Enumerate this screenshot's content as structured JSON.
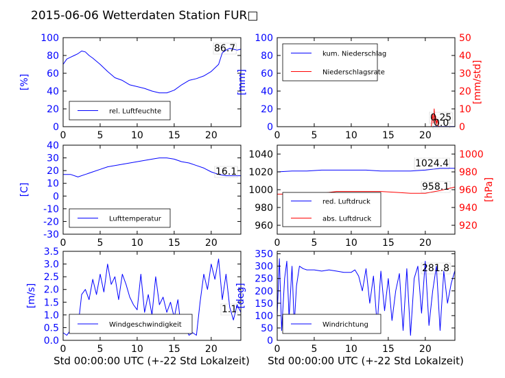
{
  "title": "2015-06-06 Wetterdaten Station FUR□",
  "xlabel": "Std 00:00:00 UTC (+-22 Std Lokalzeit)",
  "colors": {
    "primary": "#0000ff",
    "secondary": "#ff0000",
    "text": "#000000"
  },
  "chart_data": [
    {
      "id": "humidity",
      "type": "line",
      "ylabel": "[%]",
      "xlim": [
        0,
        24
      ],
      "ylim": [
        0,
        100
      ],
      "xticks": [
        0,
        5,
        10,
        15,
        20
      ],
      "yticks": [
        0,
        20,
        40,
        60,
        80,
        100
      ],
      "legend": {
        "position": "bottom-left",
        "entries": [
          "rel. Luftfeuchte"
        ]
      },
      "annotation": "86.7",
      "series": [
        {
          "name": "rel. Luftfeuchte",
          "color": "#0000ff",
          "x": [
            0,
            0.5,
            1,
            1.5,
            2,
            2.5,
            3,
            3.5,
            4,
            5,
            6,
            7,
            8,
            9,
            10,
            11,
            12,
            13,
            14,
            15,
            16,
            17,
            18,
            19,
            20,
            21,
            21.5,
            22,
            22.5,
            23,
            23.5,
            24
          ],
          "y": [
            70,
            76,
            78,
            80,
            82,
            85,
            84,
            80,
            77,
            70,
            62,
            55,
            52,
            47,
            45,
            43,
            40,
            38,
            38,
            41,
            47,
            52,
            54,
            57,
            62,
            70,
            83,
            86,
            88,
            87,
            86,
            87
          ]
        }
      ]
    },
    {
      "id": "precipitation",
      "type": "line",
      "ylabel": "[mm]",
      "y2label": "[mm/std]",
      "xlim": [
        0,
        24
      ],
      "ylim": [
        0,
        100
      ],
      "y2lim": [
        0,
        50
      ],
      "xticks": [
        0,
        5,
        10,
        15,
        20
      ],
      "yticks": [
        0,
        20,
        40,
        60,
        80,
        100
      ],
      "y2ticks": [
        0,
        10,
        20,
        30,
        40,
        50
      ],
      "legend": {
        "position": "top-left",
        "entries": [
          "kum. Niederschlag",
          "Niederschlagsrate"
        ]
      },
      "annotations": [
        "0.25",
        "0.0"
      ],
      "series": [
        {
          "name": "kum. Niederschlag",
          "color": "#0000ff",
          "axis": "left",
          "x": [
            0,
            21,
            21.2,
            24
          ],
          "y": [
            0,
            0,
            0.25,
            0.25
          ]
        },
        {
          "name": "Niederschlagsrate",
          "color": "#ff0000",
          "axis": "right",
          "x": [
            0,
            20.8,
            21,
            21.1,
            21.2,
            21.3,
            21.4,
            21.5,
            21.6,
            21.8,
            22,
            24
          ],
          "y": [
            0,
            0,
            7,
            2,
            10,
            3,
            6,
            1,
            4,
            0,
            0,
            0
          ]
        }
      ]
    },
    {
      "id": "temperature",
      "type": "line",
      "ylabel": "[C]",
      "xlim": [
        0,
        24
      ],
      "ylim": [
        -30,
        40
      ],
      "xticks": [
        0,
        5,
        10,
        15,
        20
      ],
      "yticks": [
        -30,
        -20,
        -10,
        0,
        10,
        20,
        30,
        40
      ],
      "legend": {
        "position": "bottom-left",
        "entries": [
          "Lufttemperatur"
        ]
      },
      "annotation": "16.1",
      "series": [
        {
          "name": "Lufttemperatur",
          "color": "#0000ff",
          "x": [
            0,
            1,
            2,
            3,
            4,
            5,
            6,
            7,
            8,
            9,
            10,
            11,
            12,
            13,
            14,
            15,
            16,
            17,
            18,
            19,
            20,
            21,
            22,
            23,
            24
          ],
          "y": [
            17,
            17,
            15,
            17,
            19,
            21,
            23,
            24,
            25,
            26,
            27,
            28,
            29,
            30,
            30,
            29,
            27,
            26,
            24,
            22,
            19,
            17,
            16,
            16,
            16
          ]
        }
      ]
    },
    {
      "id": "pressure",
      "type": "line",
      "ylabel": "",
      "y2label": "[hPa]",
      "xlim": [
        0,
        24
      ],
      "ylim": [
        950,
        1050
      ],
      "y2lim": [
        910,
        1010
      ],
      "xticks": [
        0,
        5,
        10,
        15,
        20
      ],
      "yticks": [
        960,
        980,
        1000,
        1020,
        1040
      ],
      "y2ticks": [
        920,
        940,
        960,
        980,
        1000
      ],
      "legend": {
        "position": "bottom-left",
        "entries": [
          "red. Luftdruck",
          "abs. Luftdruck"
        ]
      },
      "annotations": [
        "1024.4",
        "958.1"
      ],
      "series": [
        {
          "name": "red. Luftdruck",
          "color": "#0000ff",
          "axis": "left",
          "x": [
            0,
            2,
            4,
            6,
            8,
            10,
            12,
            14,
            16,
            18,
            20,
            22,
            24
          ],
          "y": [
            1020,
            1021,
            1021,
            1022,
            1022,
            1022,
            1022,
            1021,
            1021,
            1021,
            1022,
            1024,
            1024
          ]
        },
        {
          "name": "abs. Luftdruck",
          "color": "#ff0000",
          "axis": "left",
          "x": [
            0,
            2,
            4,
            6,
            8,
            10,
            12,
            14,
            16,
            18,
            20,
            22,
            24
          ],
          "y": [
            995,
            995,
            996,
            996,
            998,
            998,
            998,
            998,
            997,
            996,
            996,
            999,
            1003
          ]
        }
      ]
    },
    {
      "id": "windspeed",
      "type": "line",
      "ylabel": "[m/s]",
      "xlim": [
        0,
        24
      ],
      "ylim": [
        0,
        3.5
      ],
      "xticks": [
        0,
        5,
        10,
        15,
        20
      ],
      "yticks": [
        0,
        0.5,
        1.0,
        1.5,
        2.0,
        2.5,
        3.0,
        3.5
      ],
      "legend": {
        "position": "bottom-left",
        "entries": [
          "Windgeschwindigkeit"
        ]
      },
      "annotation": "1.1",
      "series": [
        {
          "name": "Windgeschwindigkeit",
          "color": "#0000ff",
          "x": [
            0,
            0.5,
            1,
            1.5,
            2,
            2.5,
            3,
            3.5,
            4,
            4.5,
            5,
            5.5,
            6,
            6.5,
            7,
            7.5,
            8,
            8.5,
            9,
            9.5,
            10,
            10.5,
            11,
            11.5,
            12,
            12.5,
            13,
            13.5,
            14,
            14.5,
            15,
            15.5,
            16,
            16.5,
            17,
            17.5,
            18,
            18.5,
            19,
            19.5,
            20,
            20.5,
            21,
            21.5,
            22,
            22.5,
            23,
            23.5,
            24
          ],
          "y": [
            0.3,
            0.2,
            0.4,
            0.3,
            0.5,
            1.8,
            2.0,
            1.6,
            2.4,
            1.8,
            2.6,
            1.9,
            3.0,
            2.2,
            2.5,
            1.6,
            2.6,
            2.2,
            1.7,
            1.4,
            1.2,
            2.6,
            1.1,
            1.8,
            1.0,
            2.5,
            1.4,
            1.7,
            1.1,
            1.5,
            0.9,
            1.6,
            0.3,
            0.5,
            0.2,
            0.3,
            0.2,
            1.5,
            2.6,
            2.0,
            3.0,
            2.4,
            3.2,
            1.6,
            2.6,
            1.3,
            0.8,
            1.4,
            1.1
          ]
        }
      ]
    },
    {
      "id": "winddirection",
      "type": "line",
      "ylabel": "[deg]",
      "xlim": [
        0,
        24
      ],
      "ylim": [
        0,
        360
      ],
      "xticks": [
        0,
        5,
        10,
        15,
        20
      ],
      "yticks": [
        0,
        50,
        100,
        150,
        200,
        250,
        300,
        350
      ],
      "legend": {
        "position": "bottom-left",
        "entries": [
          "Windrichtung"
        ]
      },
      "annotation": "281.8",
      "series": [
        {
          "name": "Windrichtung",
          "color": "#0000ff",
          "x": [
            0,
            0.3,
            0.6,
            1,
            1.3,
            1.6,
            2,
            2.3,
            2.6,
            3,
            3.5,
            4,
            5,
            6,
            7,
            8,
            9,
            10,
            10.5,
            11,
            11.5,
            12,
            12.5,
            13,
            13.5,
            14,
            14.5,
            15,
            15.5,
            16,
            16.5,
            17,
            17.5,
            18,
            18.5,
            19,
            19.5,
            20,
            20.5,
            21,
            21.5,
            22,
            22.5,
            23,
            23.5,
            24
          ],
          "y": [
            100,
            330,
            40,
            250,
            320,
            90,
            300,
            60,
            220,
            300,
            290,
            285,
            285,
            280,
            285,
            280,
            275,
            275,
            285,
            260,
            200,
            290,
            150,
            260,
            60,
            280,
            120,
            250,
            80,
            200,
            270,
            40,
            290,
            20,
            250,
            300,
            110,
            320,
            60,
            200,
            300,
            40,
            280,
            150,
            230,
            282
          ]
        }
      ]
    }
  ]
}
